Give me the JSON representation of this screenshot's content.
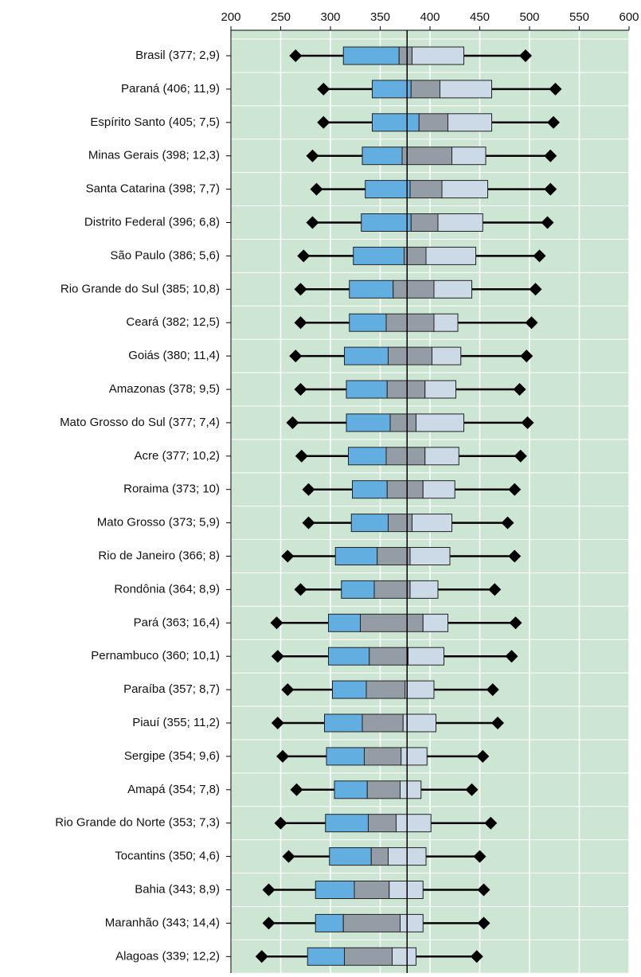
{
  "chart_data": {
    "type": "box",
    "categories": [
      "Brasil (377; 2,9)",
      "Paraná (406; 11,9)",
      "Espírito Santo (405; 7,5)",
      "Minas Gerais (398; 12,3)",
      "Santa Catarina (398; 7,7)",
      "Distrito Federal (396; 6,8)",
      "São Paulo (386; 5,6)",
      "Rio Grande do Sul (385; 10,8)",
      "Ceará (382; 12,5)",
      "Goiás (380; 11,4)",
      "Amazonas (378; 9,5)",
      "Mato Grosso do Sul (377; 7,4)",
      "Acre (377; 10,2)",
      "Roraima (373; 10)",
      "Mato Grosso (373; 5,9)",
      "Rio de Janeiro (366; 8)",
      "Rondônia (364; 8,9)",
      "Pará (363; 16,4)",
      "Pernambuco (360; 10,1)",
      "Paraíba (357; 8,7)",
      "Piauí (355; 11,2)",
      "Sergipe (354; 9,6)",
      "Amapá (354; 7,8)",
      "Rio Grande do Norte (353; 7,3)",
      "Tocantins (350; 4,6)",
      "Bahia (343; 8,9)",
      "Maranhão (343; 14,4)",
      "Alagoas (339; 12,2)"
    ],
    "whisker_low": [
      265,
      293,
      293,
      282,
      286,
      282,
      273,
      270,
      270,
      265,
      270,
      262,
      271,
      278,
      278,
      257,
      270,
      246,
      247,
      257,
      247,
      252,
      266,
      250,
      258,
      238,
      238,
      231
    ],
    "q1": [
      313,
      342,
      342,
      332,
      335,
      331,
      323,
      319,
      319,
      314,
      316,
      316,
      318,
      322,
      321,
      305,
      311,
      298,
      298,
      302,
      294,
      296,
      304,
      295,
      299,
      285,
      285,
      277
    ],
    "ci_low": [
      369,
      381,
      389,
      372,
      380,
      381,
      374,
      363,
      356,
      358,
      357,
      360,
      356,
      357,
      358,
      347,
      344,
      330,
      339,
      336,
      332,
      334,
      337,
      338,
      341,
      324,
      313,
      314
    ],
    "ci_high": [
      382,
      410,
      418,
      422,
      412,
      408,
      396,
      404,
      404,
      402,
      395,
      386,
      395,
      393,
      382,
      380,
      380,
      393,
      378,
      375,
      373,
      371,
      370,
      366,
      358,
      359,
      370,
      362
    ],
    "q3": [
      434,
      462,
      462,
      456,
      458,
      453,
      446,
      442,
      428,
      431,
      426,
      434,
      429,
      425,
      422,
      420,
      408,
      418,
      414,
      404,
      406,
      397,
      391,
      401,
      396,
      393,
      393,
      386
    ],
    "whisker_high": [
      496,
      526,
      524,
      521,
      521,
      518,
      510,
      506,
      502,
      497,
      490,
      498,
      491,
      485,
      478,
      485,
      465,
      486,
      482,
      463,
      468,
      453,
      442,
      461,
      450,
      454,
      454,
      447
    ],
    "reference_line": 377,
    "colors": {
      "lower": "#62aee0",
      "middle": "#949ca5",
      "upper": "#ccd9e7",
      "background": "#cde5d3"
    },
    "xlim": [
      200,
      600
    ],
    "xticks": [
      200,
      250,
      300,
      350,
      400,
      450,
      500,
      550,
      600
    ],
    "grid": true
  }
}
